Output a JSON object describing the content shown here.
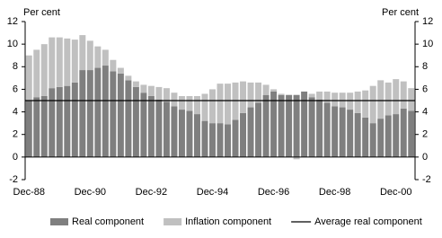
{
  "chart_data": {
    "type": "stacked-bar",
    "y_label": "Per cent",
    "y2_label": "Per cent",
    "categories": [
      "Dec-88",
      null,
      null,
      null,
      null,
      null,
      null,
      null,
      "Dec-90",
      null,
      null,
      null,
      null,
      null,
      null,
      null,
      "Dec-92",
      null,
      null,
      null,
      null,
      null,
      null,
      null,
      "Dec-94",
      null,
      null,
      null,
      null,
      null,
      null,
      null,
      "Dec-96",
      null,
      null,
      null,
      null,
      null,
      null,
      null,
      "Dec-98",
      null,
      null,
      null,
      null,
      null,
      null,
      null,
      "Dec-00",
      null,
      null
    ],
    "series": [
      {
        "name": "Real component",
        "color": "#7f7f7f",
        "values": [
          5.0,
          5.3,
          5.4,
          6.1,
          6.2,
          6.3,
          6.6,
          7.7,
          7.7,
          7.9,
          8.1,
          7.6,
          7.4,
          6.8,
          6.2,
          5.7,
          5.4,
          5.1,
          4.9,
          4.5,
          4.2,
          4.1,
          3.8,
          3.2,
          3.0,
          3.0,
          2.9,
          3.3,
          3.9,
          4.4,
          4.8,
          5.5,
          5.8,
          5.5,
          5.5,
          5.5,
          5.8,
          5.3,
          5.1,
          4.8,
          4.5,
          4.4,
          4.2,
          3.9,
          3.5,
          3.0,
          3.4,
          3.7,
          3.8,
          4.3,
          4.1
        ]
      },
      {
        "name": "Inflation component",
        "color": "#c0c0c0",
        "values": [
          4.0,
          4.2,
          4.6,
          4.5,
          4.4,
          4.2,
          3.8,
          3.1,
          2.6,
          1.9,
          1.4,
          1.0,
          0.5,
          0.4,
          0.5,
          0.7,
          0.9,
          1.1,
          1.2,
          1.2,
          1.2,
          1.3,
          1.6,
          2.4,
          3.0,
          3.5,
          3.6,
          3.3,
          2.8,
          2.2,
          1.8,
          0.9,
          0.2,
          0.1,
          0.0,
          -0.2,
          0.0,
          0.3,
          0.7,
          1.0,
          1.2,
          1.3,
          1.5,
          1.9,
          2.4,
          3.3,
          3.4,
          2.9,
          3.1,
          2.4,
          2.0
        ]
      }
    ],
    "reference_lines": [
      {
        "name": "Average real component",
        "color": "#000000",
        "value": 5.0
      }
    ],
    "ylim": [
      -2,
      12
    ],
    "yticks": [
      -2,
      0,
      2,
      4,
      6,
      8,
      10,
      12
    ],
    "y2lim": [
      -2,
      12
    ],
    "y2ticks": [
      -2,
      0,
      2,
      4,
      6,
      8,
      10,
      12
    ],
    "legend": "bottom"
  }
}
